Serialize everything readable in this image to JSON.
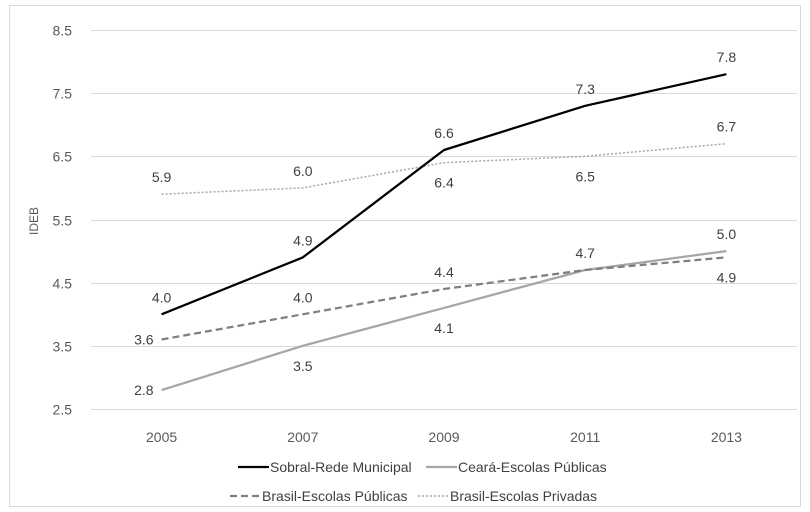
{
  "chart_data": {
    "type": "line",
    "title": "",
    "xlabel": "",
    "ylabel": "IDEB",
    "categories": [
      "2005",
      "2007",
      "2009",
      "2011",
      "2013"
    ],
    "ylim": [
      2.5,
      8.5
    ],
    "yticks": [
      "2.5",
      "3.5",
      "4.5",
      "5.5",
      "6.5",
      "7.5",
      "8.5"
    ],
    "grid": true,
    "legend_position": "bottom",
    "series": [
      {
        "name": "Sobral-Rede Municipal",
        "values": [
          4.0,
          4.9,
          6.6,
          7.3,
          7.8
        ],
        "labels": [
          "4.0",
          "4.9",
          "6.6",
          "7.3",
          "7.8"
        ],
        "color": "#000000",
        "style": "solid"
      },
      {
        "name": "Ceará-Escolas Públicas",
        "values": [
          2.8,
          3.5,
          4.1,
          4.7,
          5.0
        ],
        "labels": [
          "2.8",
          "3.5",
          "4.1",
          "4.7",
          "5.0"
        ],
        "color": "#a6a6a6",
        "style": "solid"
      },
      {
        "name": "Brasil-Escolas Públicas",
        "values": [
          3.6,
          4.0,
          4.4,
          4.7,
          4.9
        ],
        "labels": [
          "3.6",
          "4.0",
          "4.4",
          "",
          "4.9"
        ],
        "color": "#7f7f7f",
        "style": "dashed"
      },
      {
        "name": "Brasil-Escolas Privadas",
        "values": [
          5.9,
          6.0,
          6.4,
          6.5,
          6.7
        ],
        "labels": [
          "5.9",
          "6.0",
          "6.4",
          "6.5",
          "6.7"
        ],
        "color": "#a6a6a6",
        "style": "dotted"
      }
    ]
  }
}
